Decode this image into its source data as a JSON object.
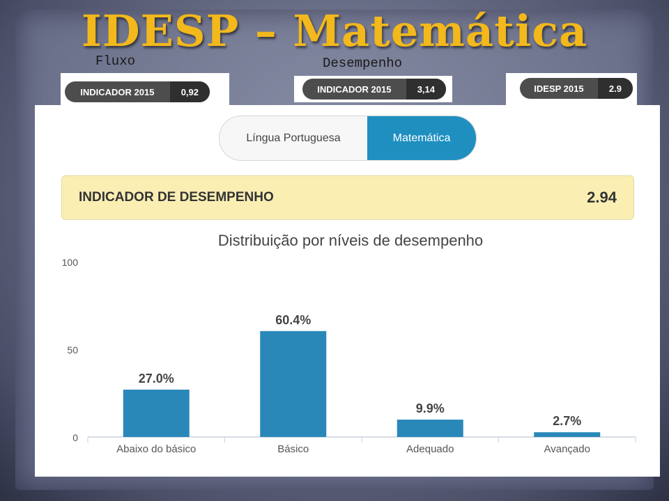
{
  "slide": {
    "title": "IDESP – Matemática",
    "labels": {
      "fluxo": "Fluxo",
      "desempenho": "Desempenho"
    },
    "cards": [
      {
        "key": "INDICADOR 2015",
        "value": "0,92"
      },
      {
        "key": "INDICADOR 2015",
        "value": "3,14"
      },
      {
        "key": "IDESP 2015",
        "value": "2.9"
      }
    ]
  },
  "tabs": {
    "portuguese": "Língua Portuguesa",
    "math": "Matemática",
    "active": "math"
  },
  "banner": {
    "label": "INDICADOR DE DESEMPENHO",
    "value": "2.94"
  },
  "colors": {
    "bar": "#2a88b9",
    "accent": "#1f8fc0",
    "title": "#f2b81c",
    "banner": "#faeeb3"
  },
  "chart_data": {
    "type": "bar",
    "title": "Distribuição por níveis de desempenho",
    "categories": [
      "Abaixo do básico",
      "Básico",
      "Adequado",
      "Avançado"
    ],
    "values": [
      27.0,
      60.4,
      9.9,
      2.7
    ],
    "value_labels": [
      "27.0%",
      "60.4%",
      "9.9%",
      "2.7%"
    ],
    "ylim": [
      0,
      100
    ],
    "yticks": [
      "0",
      "50",
      "100"
    ],
    "xlabel": "",
    "ylabel": "",
    "grid": false
  }
}
